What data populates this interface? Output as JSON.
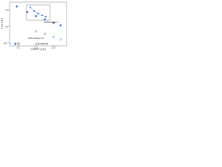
{
  "chart_data": [
    {
      "type": "scatter",
      "log_y": true,
      "x_label": "1000/T (1/K)",
      "y_label": "τ1/2 (hr)",
      "xlim": [
        3.0,
        3.65
      ],
      "ylim": [
        0.005,
        1000
      ],
      "xticks": [
        3.1,
        3.3,
        3.5
      ],
      "yticks": [
        {
          "value": 0.01,
          "label": "10⁻²"
        },
        {
          "value": 1,
          "label": "10⁰"
        },
        {
          "value": 100,
          "label": "10²"
        }
      ],
      "annotations": [
        "Relaxation I",
        "Relaxation II"
      ],
      "legend": "bottom",
      "series": [
        {
          "name": "WT",
          "color": "#3a6fc4",
          "marker": "filled",
          "x": [
            3.08,
            3.2,
            3.3,
            3.4,
            3.5,
            3.58
          ],
          "values": [
            300,
            60,
            20,
            8,
            3,
            1.5
          ]
        },
        {
          "name": "Antiwise",
          "color": "#3a6fc4",
          "marker": "open",
          "x": [
            3.3,
            3.4,
            3.5,
            3.58
          ],
          "values": [
            0.3,
            0.15,
            0.06,
            0.03
          ]
        }
      ]
    },
    {
      "type": "scatter",
      "log_y": false,
      "xlim": [
        0,
        6
      ],
      "ylim": [
        0,
        6
      ],
      "series": [
        {
          "name": null,
          "color": "#3a6fc4",
          "marker": "filled",
          "x": [
            1,
            2,
            3,
            4,
            5
          ],
          "values": [
            5,
            3.6,
            2.6,
            1.9,
            1.4
          ]
        }
      ]
    }
  ]
}
